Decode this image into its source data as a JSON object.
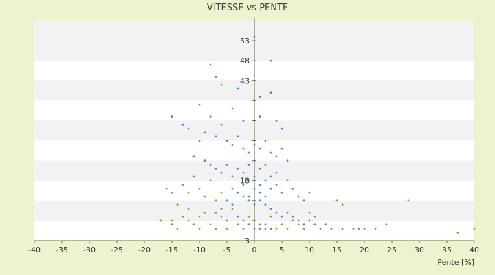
{
  "chart_data": {
    "type": "scatter",
    "title": "VITESSE vs PENTE",
    "xlabel": "Pente [%]",
    "ylabel": "",
    "xlim": [
      -40,
      40
    ],
    "ylim": [
      3,
      58
    ],
    "x_ticks": [
      -40,
      -35,
      -30,
      -25,
      -20,
      -15,
      -10,
      -5,
      0,
      5,
      10,
      15,
      20,
      25,
      30,
      35,
      40
    ],
    "y_ticks": [
      3,
      8,
      13,
      18,
      23,
      28,
      33,
      38,
      43,
      48,
      53
    ],
    "y_tick_labels_shown": [
      3,
      18,
      43,
      48,
      53
    ],
    "grid": "horizontal alternating bands",
    "colors": {
      "background": "#eef2cf",
      "band_light": "#ffffff",
      "band_dark": "#f2f2f2",
      "axis": "#6b6b2a",
      "series_main": "#3d8fd6",
      "series_secondary": "#9a9a1e"
    },
    "series": [
      {
        "name": "",
        "color": "#3d8fd6",
        "points": [
          [
            0,
            54
          ],
          [
            -8,
            47
          ],
          [
            3,
            48
          ],
          [
            -7,
            44
          ],
          [
            -6,
            42
          ],
          [
            -3,
            41
          ],
          [
            1,
            39
          ],
          [
            3,
            40
          ],
          [
            -10,
            37
          ],
          [
            -15,
            34
          ],
          [
            -13,
            32
          ],
          [
            -12,
            31
          ],
          [
            -8,
            34
          ],
          [
            -6,
            32
          ],
          [
            -4,
            36
          ],
          [
            -2,
            33
          ],
          [
            1,
            34
          ],
          [
            4,
            33
          ],
          [
            5,
            31
          ],
          [
            -9,
            30
          ],
          [
            -10,
            28
          ],
          [
            -7,
            29
          ],
          [
            -5,
            28
          ],
          [
            -4,
            27
          ],
          [
            -3,
            29
          ],
          [
            -2,
            26
          ],
          [
            -1,
            25
          ],
          [
            0,
            27
          ],
          [
            1,
            26
          ],
          [
            2,
            28
          ],
          [
            3,
            25
          ],
          [
            4,
            24
          ],
          [
            5,
            26
          ],
          [
            6,
            23
          ],
          [
            -11,
            24
          ],
          [
            -9,
            23
          ],
          [
            -8,
            22
          ],
          [
            -7,
            21
          ],
          [
            -6,
            20
          ],
          [
            -5,
            22
          ],
          [
            -4,
            19
          ],
          [
            -3,
            21
          ],
          [
            -2,
            20
          ],
          [
            -1,
            18
          ],
          [
            0,
            19
          ],
          [
            1,
            17
          ],
          [
            2,
            18
          ],
          [
            3,
            16
          ],
          [
            4,
            17
          ],
          [
            5,
            15
          ],
          [
            6,
            18
          ],
          [
            7,
            16
          ],
          [
            8,
            14
          ],
          [
            9,
            13
          ],
          [
            10,
            15
          ],
          [
            -3,
            15
          ],
          [
            -2,
            14
          ],
          [
            -1,
            13
          ],
          [
            0,
            12
          ],
          [
            1,
            13
          ],
          [
            2,
            12
          ],
          [
            3,
            11
          ],
          [
            4,
            10
          ],
          [
            5,
            9
          ],
          [
            6,
            10
          ],
          [
            7,
            9
          ],
          [
            8,
            8
          ],
          [
            9,
            7
          ],
          [
            10,
            8
          ],
          [
            11,
            7
          ],
          [
            12,
            6
          ],
          [
            13,
            7
          ],
          [
            14,
            6
          ],
          [
            16,
            6
          ],
          [
            18,
            6
          ],
          [
            20,
            6
          ],
          [
            22,
            6
          ],
          [
            24,
            7
          ],
          [
            -5,
            13
          ],
          [
            -4,
            12
          ],
          [
            -6,
            11
          ],
          [
            -7,
            10
          ],
          [
            -3,
            9
          ],
          [
            -2,
            8
          ],
          [
            -1,
            7
          ],
          [
            0,
            6
          ],
          [
            1,
            6
          ],
          [
            2,
            7
          ],
          [
            3,
            6
          ],
          [
            -1,
            22
          ],
          [
            0,
            23
          ],
          [
            1,
            21
          ],
          [
            2,
            22
          ],
          [
            0,
            16
          ],
          [
            1,
            15
          ],
          [
            -1,
            14
          ],
          [
            2,
            14
          ],
          [
            -2,
            17
          ],
          [
            3,
            19
          ],
          [
            4,
            20
          ]
        ]
      },
      {
        "name": "",
        "color": "#9a9a1e",
        "points": [
          [
            -16,
            16
          ],
          [
            -15,
            15
          ],
          [
            -14,
            12
          ],
          [
            -13,
            9
          ],
          [
            -12,
            8
          ],
          [
            -11,
            7
          ],
          [
            -10,
            6
          ],
          [
            -9,
            10
          ],
          [
            -8,
            7
          ],
          [
            -7,
            6
          ],
          [
            -6,
            9
          ],
          [
            -5,
            8
          ],
          [
            -4,
            11
          ],
          [
            -3,
            7
          ],
          [
            -2,
            6
          ],
          [
            -1,
            9
          ],
          [
            0,
            8
          ],
          [
            1,
            7
          ],
          [
            2,
            6
          ],
          [
            3,
            9
          ],
          [
            4,
            6
          ],
          [
            5,
            7
          ],
          [
            6,
            6
          ],
          [
            7,
            8
          ],
          [
            8,
            7
          ],
          [
            9,
            6
          ],
          [
            10,
            10
          ],
          [
            11,
            9
          ],
          [
            -17,
            8
          ],
          [
            -15,
            8
          ],
          [
            -12,
            11
          ],
          [
            -9,
            14
          ],
          [
            -8,
            18
          ],
          [
            -10,
            16
          ],
          [
            -7,
            13
          ],
          [
            -6,
            15
          ],
          [
            -4,
            16
          ],
          [
            15,
            13
          ],
          [
            16,
            12
          ],
          [
            19,
            6
          ],
          [
            28,
            13
          ],
          [
            37,
            5
          ],
          [
            40,
            6
          ],
          [
            -13,
            17
          ],
          [
            -11,
            19
          ],
          [
            -12,
            15
          ],
          [
            -14,
            6
          ],
          [
            -15,
            7
          ],
          [
            -10,
            9
          ],
          [
            -5,
            6
          ]
        ]
      }
    ]
  }
}
